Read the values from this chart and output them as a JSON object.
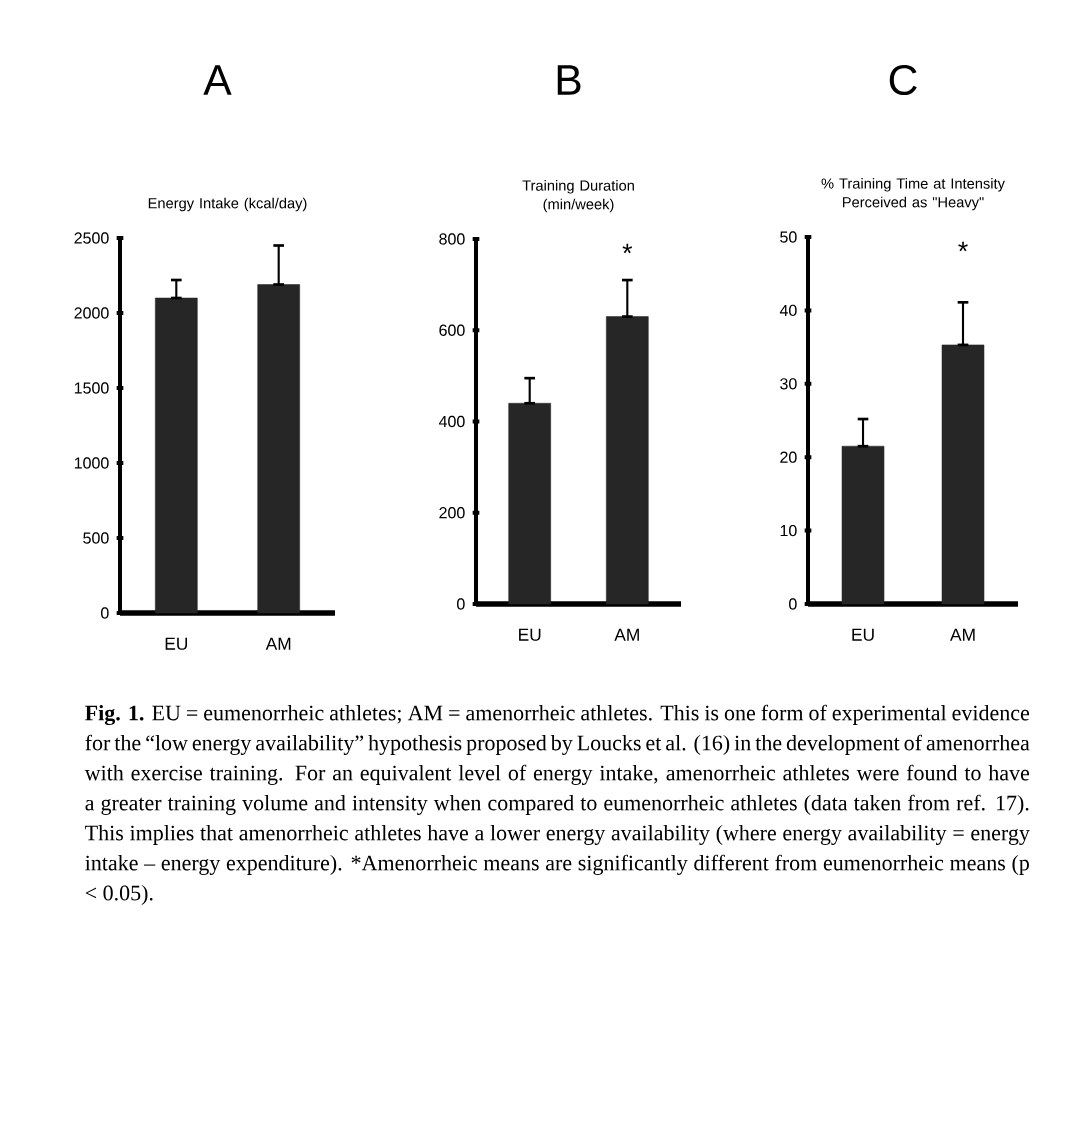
{
  "chart_data": [
    {
      "type": "bar",
      "title": "A",
      "ylabel": "Energy Intake (kcal/day)",
      "categories": [
        "EU",
        "AM"
      ],
      "values": [
        2100,
        2190
      ],
      "errors": [
        [
          2100,
          2220
        ],
        [
          2190,
          2450
        ]
      ],
      "color": "#262626",
      "ylim": [
        0,
        2500
      ],
      "yticks": [
        0,
        500,
        1000,
        1500,
        2000,
        2500
      ]
    },
    {
      "type": "bar",
      "title": "B",
      "ylabel": "Training Duration (min/week)",
      "categories": [
        "EU",
        "AM"
      ],
      "values": [
        440,
        630
      ],
      "errors": [
        [
          440,
          495
        ],
        [
          630,
          710
        ]
      ],
      "color": "#262626",
      "ylim": [
        0,
        800
      ],
      "yticks": [
        0,
        200,
        400,
        600,
        800
      ],
      "annotations": [
        "*"
      ]
    },
    {
      "type": "bar",
      "title": "C",
      "ylabel": "% Training Time at Intensity Perceived as \"Heavy\"",
      "categories": [
        "EU",
        "AM"
      ],
      "values": [
        21.5,
        35.3
      ],
      "errors": [
        [
          21.5,
          25.2
        ],
        [
          35.3,
          41.1
        ]
      ],
      "color": "#262626",
      "ylim": [
        0,
        50
      ],
      "yticks": [
        0,
        10,
        20,
        30,
        40,
        50
      ],
      "annotations": [
        "*",
        "**Fig. 1.** EU = eumenorrheic athletes; AM = amenorrheic athletes. This is one form of experimental evidence for the “low energy availability” hypothesis proposed by Loucks et al. (16) in the development of amenorrhea with exercise training. For an equivalent level of energy intake, amenorrheic athletes were found to have a greater training volume and intensity when compared to eumenorrheic athletes (data taken from ref. 17). This implies that amenorrheic athletes have a lower energy availability (where energy availability = energy intake – energy expenditure). *Amenorrheic means are significantly different from eumenorrheic means (p < 0.05)."
      ]
    }
  ]
}
